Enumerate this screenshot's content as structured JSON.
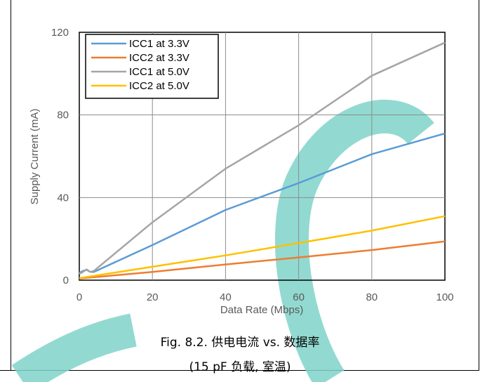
{
  "chart_data": {
    "type": "line",
    "xlabel": "Data Rate (Mbps)",
    "ylabel": "Supply Current (mA)",
    "xlim": [
      0,
      100
    ],
    "ylim": [
      0,
      120
    ],
    "x_ticks": [
      "0",
      "20",
      "40",
      "60",
      "80",
      "100"
    ],
    "y_ticks": [
      "0",
      "40",
      "80",
      "120"
    ],
    "grid": true,
    "legend_position": "top-left",
    "series": [
      {
        "name": "ICC1 at 3.3V",
        "color": "#5b9bd5",
        "x": [
          0,
          1,
          2,
          3,
          4,
          20,
          40,
          60,
          80,
          100
        ],
        "y": [
          3.5,
          4.5,
          5,
          4,
          4,
          17,
          34,
          47,
          61,
          71
        ]
      },
      {
        "name": "ICC2 at 3.3V",
        "color": "#ed7d31",
        "x": [
          0,
          20,
          40,
          60,
          80,
          100
        ],
        "y": [
          0.8,
          4,
          7.6,
          11,
          14.6,
          18.8
        ]
      },
      {
        "name": "ICC1 at 5.0V",
        "color": "#a5a5a5",
        "x": [
          0,
          1,
          2,
          3,
          4,
          20,
          40,
          60,
          80,
          100
        ],
        "y": [
          3,
          4,
          5.2,
          4,
          4.5,
          28,
          54,
          75,
          99,
          115
        ]
      },
      {
        "name": "ICC2 at 5.0V",
        "color": "#ffc000",
        "x": [
          0,
          20,
          40,
          60,
          80,
          100
        ],
        "y": [
          1,
          6.5,
          12,
          18,
          24,
          31
        ]
      }
    ]
  },
  "caption": {
    "line1": "Fig. 8.2. 供电电流 vs. 数据率",
    "line2": "(15 pF 负载, 室温)"
  }
}
